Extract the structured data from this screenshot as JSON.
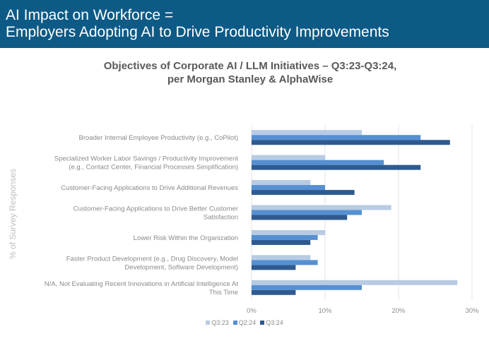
{
  "header": {
    "title_line1": "AI Impact on Workforce =",
    "title_line2": "Employers Adopting AI to Drive Productivity Improvements"
  },
  "chart_data": {
    "type": "bar",
    "orientation": "horizontal",
    "title_line1": "Objectives of Corporate AI / LLM Initiatives – Q3:23-Q3:24,",
    "title_line2": "per Morgan Stanley & AlphaWise",
    "ylabel": "% of Survey Responses",
    "xlabel": "",
    "xlim": [
      0,
      30
    ],
    "xticks": [
      "0%",
      "10%",
      "20%",
      "30%"
    ],
    "grid": true,
    "legend_position": "bottom",
    "categories": [
      [
        "Broader Internal Employee Productivity (e.g., CoPilot)"
      ],
      [
        "Specialized Worker Labor Savings / Productivity Improvement",
        "(e.g., Contact Center, Financial Processes Simplification)"
      ],
      [
        "Customer-Facing Applications to Drive Additional Revenues"
      ],
      [
        "Customer-Facing Applications to Drive Better Customer",
        "Satisfaction"
      ],
      [
        "Lower Risk Within the Organization"
      ],
      [
        "Faster Product Development (e.g., Drug Discovery, Model",
        "Development, Software Development)"
      ],
      [
        "N/A, Not Evaluating Recent Innovations in Artificial Intelligence At",
        "This Time"
      ]
    ],
    "series": [
      {
        "name": "Q3:23",
        "color": "#b7cbe3",
        "values": [
          15,
          10,
          8,
          19,
          10,
          8,
          28
        ]
      },
      {
        "name": "Q2:24",
        "color": "#5590d2",
        "values": [
          23,
          18,
          10,
          15,
          9,
          9,
          15
        ]
      },
      {
        "name": "Q3:24",
        "color": "#2e5a90",
        "values": [
          27,
          23,
          14,
          13,
          8,
          6,
          6
        ]
      }
    ]
  }
}
